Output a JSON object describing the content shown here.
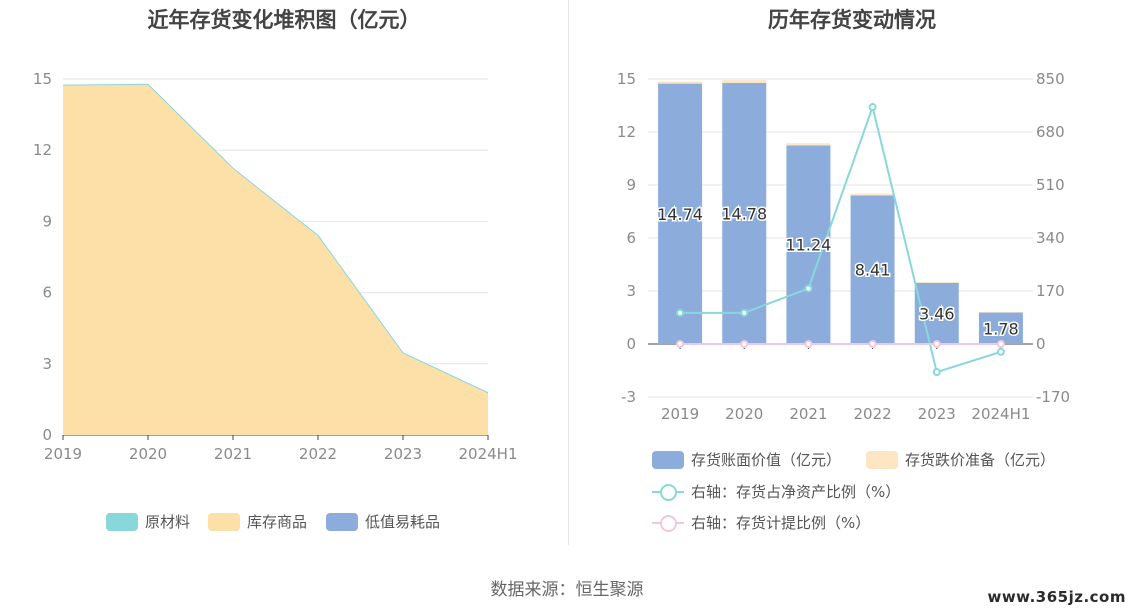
{
  "source": "数据来源：恒生聚源",
  "watermark": "www.365jz.com",
  "colors": {
    "raw": "#88d8db",
    "goods": "#fde0a8",
    "consumables": "#8caddb",
    "bar_main": "#8caddb",
    "bar_impair": "#fde6c4",
    "line_netasset": "#88d8db",
    "line_impair": "#f0c8de"
  },
  "chart_data": [
    {
      "type": "area",
      "title": "近年存货变化堆积图（亿元）",
      "categories": [
        "2019",
        "2020",
        "2021",
        "2022",
        "2023",
        "2024H1"
      ],
      "series": [
        {
          "name": "原材料",
          "values": [
            0,
            0,
            0,
            0,
            0,
            0
          ]
        },
        {
          "name": "库存商品",
          "values": [
            14.74,
            14.78,
            11.24,
            8.41,
            3.46,
            1.78
          ]
        },
        {
          "name": "低值易耗品",
          "values": [
            0,
            0,
            0,
            0,
            0,
            0
          ]
        }
      ],
      "yticks": [
        "0",
        "3",
        "6",
        "9",
        "12",
        "15"
      ],
      "ylim": [
        0,
        15
      ],
      "grid": true,
      "legend": "bottom"
    },
    {
      "type": "bar",
      "title": "历年存货变动情况",
      "categories": [
        "2019",
        "2020",
        "2021",
        "2022",
        "2023",
        "2024H1"
      ],
      "series": [
        {
          "name": "存货账面价值（亿元）",
          "values": [
            14.74,
            14.78,
            11.24,
            8.41,
            3.46,
            1.78
          ],
          "labels": [
            "14.74",
            "14.78",
            "11.24",
            "8.41",
            "3.46",
            "1.78"
          ]
        },
        {
          "name": "存货跌价准备（亿元）",
          "values": [
            0.12,
            0.16,
            0.13,
            0.1,
            0.05,
            0.04
          ]
        },
        {
          "name": "右轴：存货占净资产比例（%）",
          "axis": "right",
          "values": [
            100,
            100,
            178,
            760,
            -90,
            -25
          ]
        },
        {
          "name": "右轴：存货计提比例（%）",
          "axis": "right",
          "values": [
            0,
            0,
            0,
            0,
            0,
            0
          ]
        }
      ],
      "yticks_left": [
        "-3",
        "0",
        "3",
        "6",
        "9",
        "12",
        "15"
      ],
      "yticks_right": [
        "-170",
        "0",
        "170",
        "340",
        "510",
        "680",
        "850"
      ],
      "ylim_left": [
        -3,
        15
      ],
      "ylim_right": [
        -170,
        850
      ],
      "grid": true,
      "legend": "bottom"
    }
  ]
}
